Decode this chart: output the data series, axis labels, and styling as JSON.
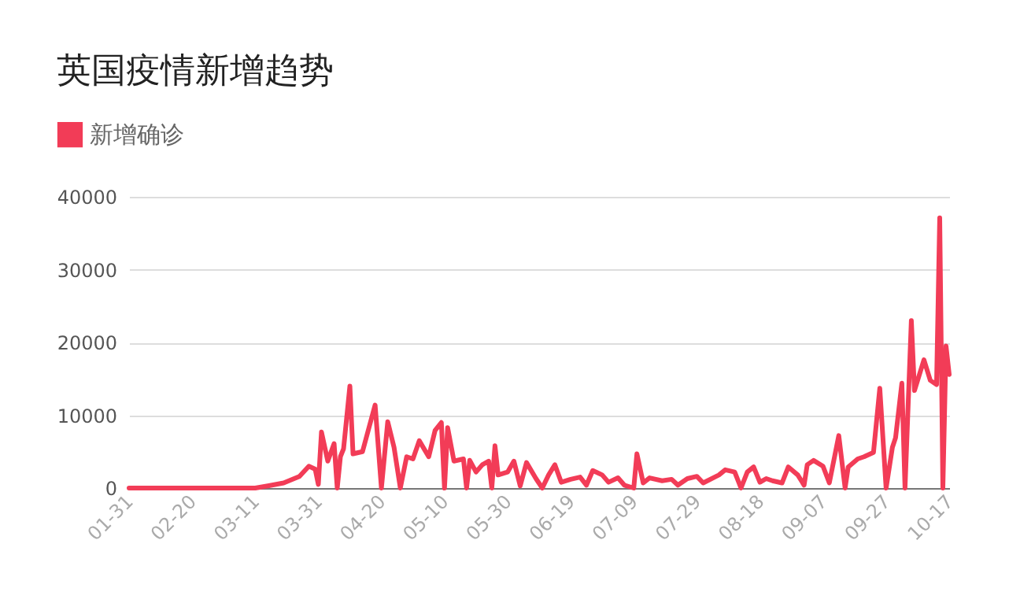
{
  "chart_data": {
    "type": "line",
    "title": "英国疫情新增趋势",
    "legend": "top left",
    "grid": "y",
    "x": [
      "--01-31",
      "--02-20",
      "--03-11",
      "--03-15",
      "--03-20",
      "--03-25",
      "--03-28",
      "--03-30",
      "--03-31",
      "--04-01",
      "--04-03",
      "--04-05",
      "--04-06",
      "--04-07",
      "--04-08",
      "--04-10",
      "--04-11",
      "--04-14",
      "--04-18",
      "--04-20",
      "--04-22",
      "--04-24",
      "--04-26",
      "--04-28",
      "--04-30",
      "--05-02",
      "--05-05",
      "--05-07",
      "--05-09",
      "--05-10",
      "--05-11",
      "--05-13",
      "--05-16",
      "--05-17",
      "--05-18",
      "--05-20",
      "--05-22",
      "--05-24",
      "--05-25",
      "--05-26",
      "--05-27",
      "--05-30",
      "--06-01",
      "--06-03",
      "--06-05",
      "--06-08",
      "--06-10",
      "--06-12",
      "--06-14",
      "--06-16",
      "--06-19",
      "--06-22",
      "--06-24",
      "--06-26",
      "--06-29",
      "--07-01",
      "--07-04",
      "--07-06",
      "--07-09",
      "--07-10",
      "--07-12",
      "--07-14",
      "--07-18",
      "--07-21",
      "--07-23",
      "--07-26",
      "--07-29",
      "--07-31",
      "--08-05",
      "--08-07",
      "--08-10",
      "--08-12",
      "--08-14",
      "--08-16",
      "--08-18",
      "--08-20",
      "--08-22",
      "--08-25",
      "--08-27",
      "--08-30",
      "--09-01",
      "--09-02",
      "--09-04",
      "--09-07",
      "--09-09",
      "--09-12",
      "--09-14",
      "--09-15",
      "--09-18",
      "--09-20",
      "--09-23",
      "--09-25",
      "--09-27",
      "--09-29",
      "--09-30",
      "--10-02",
      "--10-03",
      "--10-05",
      "--10-06",
      "--10-09",
      "--10-11",
      "--10-13",
      "--10-14",
      "--10-15",
      "--10-16",
      "--10-17"
    ],
    "series": [
      {
        "name": "新增确诊",
        "color": "#f23c57",
        "values": [
          0,
          0,
          0,
          300,
          700,
          1600,
          3000,
          2600,
          500,
          7700,
          3700,
          6100,
          0,
          4300,
          5400,
          14000,
          4700,
          5000,
          11400,
          0,
          9100,
          5600,
          0,
          4300,
          4000,
          6500,
          4300,
          7900,
          9000,
          0,
          8300,
          3700,
          4000,
          0,
          3800,
          2200,
          3200,
          3700,
          0,
          5800,
          1800,
          2200,
          3700,
          300,
          3500,
          1300,
          0,
          1800,
          3200,
          800,
          1200,
          1500,
          400,
          2400,
          1800,
          800,
          1400,
          400,
          0,
          4700,
          700,
          1400,
          1000,
          1200,
          400,
          1300,
          1600,
          700,
          1800,
          2500,
          2200,
          0,
          2200,
          2900,
          800,
          1300,
          1000,
          700,
          2900,
          1800,
          400,
          3200,
          3800,
          3000,
          700,
          7200,
          0,
          2900,
          4000,
          4300,
          4900,
          13700,
          0,
          5600,
          6900,
          14400,
          0,
          23000,
          13400,
          17600,
          14800,
          14200,
          37100,
          0,
          19500,
          15600
        ]
      }
    ],
    "xlim": [
      "--01-31",
      "--10-17"
    ],
    "xticks": [
      {
        "value": "--01-31",
        "label": "01-31"
      },
      {
        "value": "--02-20",
        "label": "02-20"
      },
      {
        "value": "--03-11",
        "label": "03-11"
      },
      {
        "value": "--03-31",
        "label": "03-31"
      },
      {
        "value": "--04-20",
        "label": "04-20"
      },
      {
        "value": "--05-10",
        "label": "05-10"
      },
      {
        "value": "--05-30",
        "label": "05-30"
      },
      {
        "value": "--06-19",
        "label": "06-19"
      },
      {
        "value": "--07-09",
        "label": "07-09"
      },
      {
        "value": "--07-29",
        "label": "07-29"
      },
      {
        "value": "--08-18",
        "label": "08-18"
      },
      {
        "value": "--09-07",
        "label": "09-07"
      },
      {
        "value": "--09-27",
        "label": "09-27"
      },
      {
        "value": "--10-17",
        "label": "10-17"
      }
    ],
    "ylim": [
      0,
      40000
    ],
    "yticks": [
      0,
      10000,
      20000,
      30000,
      40000
    ]
  }
}
